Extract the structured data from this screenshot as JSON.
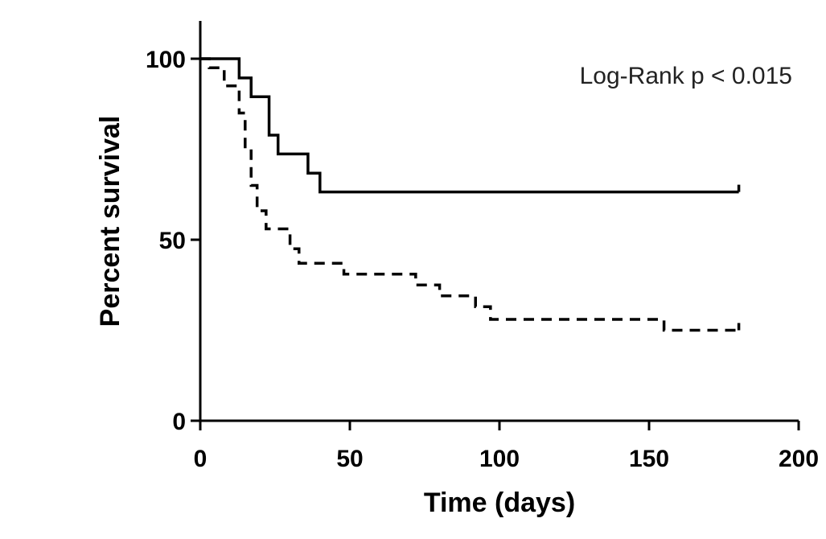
{
  "chart_data": {
    "type": "line",
    "title": "",
    "xlabel": "Time (days)",
    "ylabel": "Percent survival",
    "xlim": [
      0,
      200
    ],
    "ylim": [
      0,
      100
    ],
    "x_ticks": [
      0,
      50,
      100,
      150,
      200
    ],
    "x_tick_labels": [
      "0",
      "50",
      "100",
      "150",
      "200"
    ],
    "y_ticks": [
      0,
      50,
      100
    ],
    "y_tick_labels": [
      "0",
      "50",
      "100"
    ],
    "grid": false,
    "annotation": "Log-Rank p < 0.015",
    "series": [
      {
        "style": "solid",
        "step": true,
        "x": [
          0,
          13,
          17,
          23,
          26,
          36,
          40,
          180
        ],
        "y": [
          100,
          94.7,
          89.5,
          78.9,
          73.7,
          68.4,
          63.2,
          63.2
        ]
      },
      {
        "style": "dashed",
        "step": true,
        "x": [
          0,
          3,
          8,
          13,
          15,
          17,
          19,
          22,
          30,
          33,
          48,
          72,
          80,
          92,
          97,
          155,
          180
        ],
        "y": [
          100,
          97.5,
          92.5,
          85,
          75,
          65,
          58,
          53,
          47.5,
          43.5,
          40.5,
          37.5,
          34.5,
          31.5,
          28,
          25,
          25
        ]
      }
    ]
  }
}
